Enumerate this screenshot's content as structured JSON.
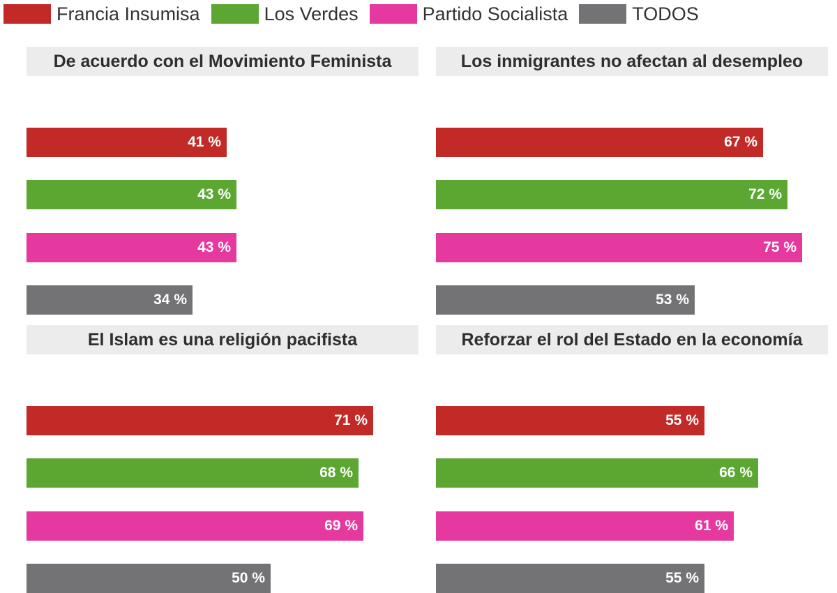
{
  "colors": {
    "Francia Insumisa": "#c22a27",
    "Los Verdes": "#5ba732",
    "Partido Socialista": "#e5399f",
    "TODOS": "#737275"
  },
  "chart_data": {
    "type": "bar",
    "orientation": "horizontal",
    "legend": [
      "Francia Insumisa",
      "Los Verdes",
      "Partido Socialista",
      "TODOS"
    ],
    "legend_position": "top-left",
    "xlim": [
      0,
      100
    ],
    "grid": false,
    "panels": [
      {
        "title": "De acuerdo con el Movimiento Feminista",
        "categories": [
          "Francia Insumisa",
          "Los Verdes",
          "Partido Socialista",
          "TODOS"
        ],
        "values": [
          41,
          43,
          43,
          34
        ],
        "labels": [
          "41 %",
          "43 %",
          "43 %",
          "34 %"
        ]
      },
      {
        "title": "Los inmigrantes no afectan al desempleo",
        "categories": [
          "Francia Insumisa",
          "Los Verdes",
          "Partido Socialista",
          "TODOS"
        ],
        "values": [
          67,
          72,
          75,
          53
        ],
        "labels": [
          "67 %",
          "72 %",
          "75 %",
          "53 %"
        ]
      },
      {
        "title": "El Islam es una religión pacifista",
        "categories": [
          "Francia Insumisa",
          "Los Verdes",
          "Partido Socialista",
          "TODOS"
        ],
        "values": [
          71,
          68,
          69,
          50
        ],
        "labels": [
          "71 %",
          "68 %",
          "69 %",
          "50 %"
        ]
      },
      {
        "title": "Reforzar el rol del Estado en la economía",
        "categories": [
          "Francia Insumisa",
          "Los Verdes",
          "Partido Socialista",
          "TODOS"
        ],
        "values": [
          55,
          66,
          61,
          55
        ],
        "labels": [
          "55 %",
          "66 %",
          "61 %",
          "55 %"
        ]
      }
    ]
  }
}
